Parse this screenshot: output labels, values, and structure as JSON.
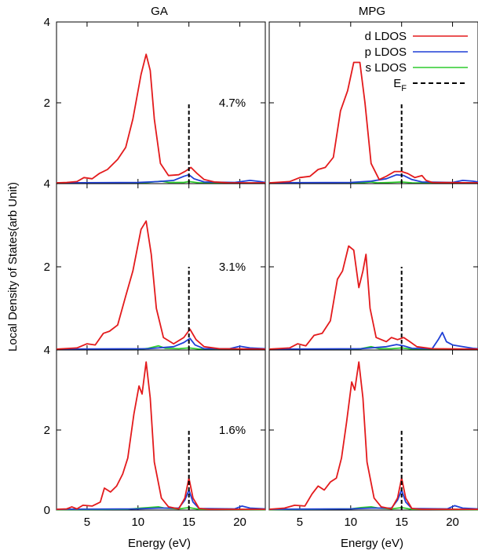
{
  "figure": {
    "ylabel": "Local Density of States(arb Unit)",
    "xlabel": "Energy (eV)",
    "columns": [
      "GA",
      "MPG"
    ],
    "rows": [
      "4.7%",
      "3.1%",
      "1.6%"
    ],
    "legend": {
      "entries": [
        {
          "label": "d LDOS",
          "color": "#e31a1c",
          "style": "solid"
        },
        {
          "label": "p LDOS",
          "color": "#1f3fd6",
          "style": "solid"
        },
        {
          "label": "s LDOS",
          "color": "#2ecc2e",
          "style": "solid"
        }
      ],
      "ef": {
        "label": "E",
        "sub": "F",
        "color": "#000000",
        "style": "dashed"
      }
    }
  },
  "chart_data": {
    "type": "line",
    "xlim": [
      2,
      22.5
    ],
    "ylim": [
      0,
      4
    ],
    "xticks": [
      5,
      10,
      15,
      20
    ],
    "xtick_labels": [
      "5",
      "10",
      "15",
      "20"
    ],
    "yticks_top": [
      {
        "v": 0,
        "t": "4"
      },
      {
        "v": 2,
        "t": "2"
      },
      {
        "v": 4,
        "t": "4"
      }
    ],
    "yticks_mid": [
      {
        "v": 0,
        "t": "4"
      },
      {
        "v": 2,
        "t": "2"
      }
    ],
    "yticks_bottom": [
      {
        "v": 0,
        "t": "0"
      },
      {
        "v": 2,
        "t": "2"
      }
    ],
    "fermi_level": 15,
    "fermi_height": 2,
    "panels": [
      {
        "column": "GA",
        "strain": "4.7%",
        "d": [
          [
            2,
            0.02
          ],
          [
            3,
            0.03
          ],
          [
            4,
            0.05
          ],
          [
            4.7,
            0.15
          ],
          [
            5.5,
            0.12
          ],
          [
            6.2,
            0.25
          ],
          [
            7,
            0.35
          ],
          [
            8,
            0.6
          ],
          [
            8.8,
            0.9
          ],
          [
            9.5,
            1.6
          ],
          [
            10.3,
            2.7
          ],
          [
            10.8,
            3.2
          ],
          [
            11.2,
            2.8
          ],
          [
            11.6,
            1.6
          ],
          [
            12.2,
            0.5
          ],
          [
            13,
            0.2
          ],
          [
            14,
            0.22
          ],
          [
            14.6,
            0.3
          ],
          [
            15.2,
            0.4
          ],
          [
            15.8,
            0.25
          ],
          [
            16.5,
            0.1
          ],
          [
            17.5,
            0.04
          ],
          [
            19,
            0.02
          ],
          [
            22.5,
            0.02
          ]
        ],
        "p": [
          [
            2,
            0.02
          ],
          [
            10,
            0.03
          ],
          [
            12,
            0.05
          ],
          [
            13.5,
            0.08
          ],
          [
            14.5,
            0.18
          ],
          [
            15,
            0.22
          ],
          [
            15.5,
            0.12
          ],
          [
            16.5,
            0.04
          ],
          [
            19.5,
            0.03
          ],
          [
            21,
            0.08
          ],
          [
            22,
            0.05
          ],
          [
            22.5,
            0.03
          ]
        ],
        "s": [
          [
            2,
            0.01
          ],
          [
            9,
            0.01
          ],
          [
            11,
            0.03
          ],
          [
            12.3,
            0.06
          ],
          [
            13,
            0.03
          ],
          [
            14.5,
            0.03
          ],
          [
            15,
            0.05
          ],
          [
            16,
            0.02
          ],
          [
            22.5,
            0.01
          ]
        ]
      },
      {
        "column": "MPG",
        "strain": "4.7%",
        "d": [
          [
            2,
            0.02
          ],
          [
            4,
            0.05
          ],
          [
            5,
            0.15
          ],
          [
            6,
            0.18
          ],
          [
            6.8,
            0.35
          ],
          [
            7.5,
            0.4
          ],
          [
            8.3,
            0.65
          ],
          [
            9,
            1.8
          ],
          [
            9.7,
            2.3
          ],
          [
            10.3,
            3.0
          ],
          [
            10.9,
            3.0
          ],
          [
            11.4,
            2.0
          ],
          [
            12,
            0.5
          ],
          [
            12.8,
            0.1
          ],
          [
            13.5,
            0.18
          ],
          [
            14.3,
            0.3
          ],
          [
            15,
            0.3
          ],
          [
            15.6,
            0.25
          ],
          [
            16.3,
            0.15
          ],
          [
            17,
            0.2
          ],
          [
            17.4,
            0.08
          ],
          [
            18,
            0.03
          ],
          [
            22.5,
            0.02
          ]
        ],
        "p": [
          [
            2,
            0.02
          ],
          [
            10,
            0.03
          ],
          [
            12,
            0.06
          ],
          [
            13.5,
            0.12
          ],
          [
            14.5,
            0.22
          ],
          [
            15.2,
            0.2
          ],
          [
            16,
            0.1
          ],
          [
            17,
            0.04
          ],
          [
            20,
            0.03
          ],
          [
            21,
            0.08
          ],
          [
            22,
            0.06
          ],
          [
            22.5,
            0.04
          ]
        ],
        "s": [
          [
            2,
            0.01
          ],
          [
            11,
            0.02
          ],
          [
            12,
            0.04
          ],
          [
            12.6,
            0.02
          ],
          [
            14,
            0.03
          ],
          [
            15,
            0.04
          ],
          [
            16,
            0.02
          ],
          [
            22.5,
            0.01
          ]
        ]
      },
      {
        "column": "GA",
        "strain": "3.1%",
        "d": [
          [
            2,
            0.02
          ],
          [
            4,
            0.05
          ],
          [
            5,
            0.15
          ],
          [
            5.8,
            0.12
          ],
          [
            6.6,
            0.4
          ],
          [
            7.2,
            0.45
          ],
          [
            8,
            0.6
          ],
          [
            8.8,
            1.3
          ],
          [
            9.5,
            1.9
          ],
          [
            10.3,
            2.9
          ],
          [
            10.8,
            3.1
          ],
          [
            11.3,
            2.3
          ],
          [
            11.8,
            1.0
          ],
          [
            12.5,
            0.3
          ],
          [
            13.5,
            0.15
          ],
          [
            14.5,
            0.3
          ],
          [
            15.1,
            0.5
          ],
          [
            15.7,
            0.25
          ],
          [
            16.5,
            0.08
          ],
          [
            18,
            0.03
          ],
          [
            22.5,
            0.02
          ]
        ],
        "p": [
          [
            2,
            0.02
          ],
          [
            11,
            0.03
          ],
          [
            13.5,
            0.08
          ],
          [
            14.5,
            0.18
          ],
          [
            15.1,
            0.28
          ],
          [
            15.6,
            0.12
          ],
          [
            16.5,
            0.03
          ],
          [
            19,
            0.03
          ],
          [
            20,
            0.09
          ],
          [
            21,
            0.05
          ],
          [
            22.5,
            0.03
          ]
        ],
        "s": [
          [
            2,
            0.01
          ],
          [
            10,
            0.01
          ],
          [
            11,
            0.04
          ],
          [
            12,
            0.1
          ],
          [
            12.7,
            0.04
          ],
          [
            14,
            0.03
          ],
          [
            15,
            0.05
          ],
          [
            16,
            0.02
          ],
          [
            22.5,
            0.01
          ]
        ]
      },
      {
        "column": "MPG",
        "strain": "3.1%",
        "d": [
          [
            2,
            0.02
          ],
          [
            4,
            0.05
          ],
          [
            4.8,
            0.15
          ],
          [
            5.6,
            0.1
          ],
          [
            6.4,
            0.35
          ],
          [
            7.2,
            0.4
          ],
          [
            8,
            0.7
          ],
          [
            8.7,
            1.7
          ],
          [
            9.2,
            1.9
          ],
          [
            9.8,
            2.5
          ],
          [
            10.3,
            2.4
          ],
          [
            10.8,
            1.5
          ],
          [
            11.2,
            1.9
          ],
          [
            11.5,
            2.3
          ],
          [
            11.9,
            1.0
          ],
          [
            12.5,
            0.3
          ],
          [
            13.5,
            0.2
          ],
          [
            14,
            0.3
          ],
          [
            14.6,
            0.25
          ],
          [
            15.2,
            0.3
          ],
          [
            15.8,
            0.2
          ],
          [
            16.5,
            0.08
          ],
          [
            18,
            0.03
          ],
          [
            22.5,
            0.02
          ]
        ],
        "p": [
          [
            2,
            0.02
          ],
          [
            11,
            0.03
          ],
          [
            13.5,
            0.08
          ],
          [
            14.5,
            0.13
          ],
          [
            15.2,
            0.1
          ],
          [
            16,
            0.04
          ],
          [
            18,
            0.03
          ],
          [
            18.6,
            0.25
          ],
          [
            19,
            0.42
          ],
          [
            19.4,
            0.2
          ],
          [
            20,
            0.12
          ],
          [
            21,
            0.08
          ],
          [
            22,
            0.04
          ],
          [
            22.5,
            0.03
          ]
        ],
        "s": [
          [
            2,
            0.01
          ],
          [
            10,
            0.01
          ],
          [
            11,
            0.03
          ],
          [
            12,
            0.08
          ],
          [
            12.8,
            0.03
          ],
          [
            14,
            0.03
          ],
          [
            15,
            0.05
          ],
          [
            16,
            0.02
          ],
          [
            22.5,
            0.01
          ]
        ]
      },
      {
        "column": "GA",
        "strain": "1.6%",
        "d": [
          [
            2,
            0.02
          ],
          [
            3,
            0.03
          ],
          [
            3.5,
            0.08
          ],
          [
            4,
            0.03
          ],
          [
            4.6,
            0.12
          ],
          [
            5.5,
            0.1
          ],
          [
            6.3,
            0.2
          ],
          [
            6.7,
            0.55
          ],
          [
            7.3,
            0.45
          ],
          [
            7.9,
            0.6
          ],
          [
            8.5,
            0.9
          ],
          [
            9,
            1.3
          ],
          [
            9.6,
            2.4
          ],
          [
            10.1,
            3.1
          ],
          [
            10.4,
            2.9
          ],
          [
            10.8,
            3.7
          ],
          [
            11.2,
            2.8
          ],
          [
            11.6,
            1.2
          ],
          [
            12.3,
            0.3
          ],
          [
            13,
            0.08
          ],
          [
            14,
            0.03
          ],
          [
            14.6,
            0.3
          ],
          [
            15,
            0.8
          ],
          [
            15.4,
            0.3
          ],
          [
            16,
            0.04
          ],
          [
            17,
            0.02
          ],
          [
            22.5,
            0.02
          ]
        ],
        "p": [
          [
            2,
            0.02
          ],
          [
            10,
            0.03
          ],
          [
            12,
            0.05
          ],
          [
            14,
            0.05
          ],
          [
            14.6,
            0.25
          ],
          [
            15,
            0.5
          ],
          [
            15.4,
            0.2
          ],
          [
            16,
            0.04
          ],
          [
            19.5,
            0.03
          ],
          [
            20.2,
            0.1
          ],
          [
            21,
            0.05
          ],
          [
            22.5,
            0.03
          ]
        ],
        "s": [
          [
            2,
            0.01
          ],
          [
            9,
            0.02
          ],
          [
            10.3,
            0.05
          ],
          [
            11,
            0.06
          ],
          [
            12,
            0.08
          ],
          [
            12.6,
            0.05
          ],
          [
            14,
            0.03
          ],
          [
            15,
            0.06
          ],
          [
            16,
            0.02
          ],
          [
            22.5,
            0.01
          ]
        ]
      },
      {
        "column": "MPG",
        "strain": "1.6%",
        "d": [
          [
            2,
            0.02
          ],
          [
            3.5,
            0.05
          ],
          [
            4.5,
            0.12
          ],
          [
            5.5,
            0.1
          ],
          [
            6.2,
            0.4
          ],
          [
            6.8,
            0.6
          ],
          [
            7.4,
            0.5
          ],
          [
            8,
            0.7
          ],
          [
            8.6,
            0.8
          ],
          [
            9.1,
            1.3
          ],
          [
            9.6,
            2.2
          ],
          [
            10.1,
            3.2
          ],
          [
            10.4,
            3.0
          ],
          [
            10.8,
            3.7
          ],
          [
            11.2,
            2.8
          ],
          [
            11.6,
            1.2
          ],
          [
            12.3,
            0.3
          ],
          [
            13,
            0.08
          ],
          [
            14,
            0.03
          ],
          [
            14.6,
            0.3
          ],
          [
            15,
            0.8
          ],
          [
            15.4,
            0.3
          ],
          [
            16,
            0.04
          ],
          [
            17,
            0.02
          ],
          [
            22.5,
            0.02
          ]
        ],
        "p": [
          [
            2,
            0.02
          ],
          [
            10,
            0.03
          ],
          [
            12,
            0.05
          ],
          [
            14,
            0.05
          ],
          [
            14.6,
            0.25
          ],
          [
            15,
            0.5
          ],
          [
            15.4,
            0.2
          ],
          [
            16,
            0.04
          ],
          [
            19.5,
            0.03
          ],
          [
            20.2,
            0.11
          ],
          [
            21,
            0.05
          ],
          [
            22.5,
            0.03
          ]
        ],
        "s": [
          [
            2,
            0.01
          ],
          [
            10,
            0.03
          ],
          [
            11,
            0.06
          ],
          [
            12,
            0.08
          ],
          [
            12.7,
            0.05
          ],
          [
            14,
            0.03
          ],
          [
            15,
            0.06
          ],
          [
            16,
            0.02
          ],
          [
            22.5,
            0.01
          ]
        ]
      }
    ]
  }
}
